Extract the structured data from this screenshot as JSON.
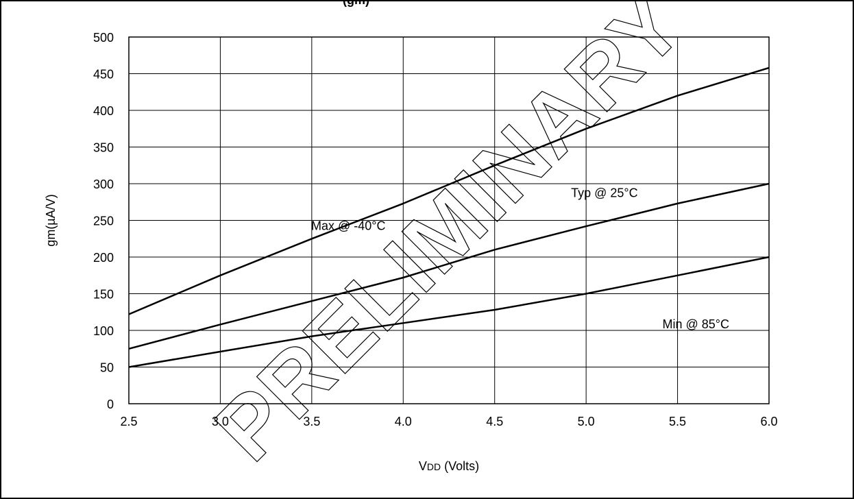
{
  "top_clipped_text": "(gm)",
  "watermark": "PRELIMINARY",
  "chart_data": {
    "type": "line",
    "title": "",
    "xlabel": "VDD (Volts)",
    "ylabel": "gm(µA/V)",
    "xlim": [
      2.5,
      6.0
    ],
    "ylim": [
      0,
      500
    ],
    "x_ticks": [
      "2.5",
      "3.0",
      "3.5",
      "4.0",
      "4.5",
      "5.0",
      "5.5",
      "6.0"
    ],
    "y_ticks": [
      "0",
      "50",
      "100",
      "150",
      "200",
      "250",
      "300",
      "350",
      "400",
      "450",
      "500"
    ],
    "grid": true,
    "series": [
      {
        "name": "Max @ -40°C",
        "x": [
          2.5,
          3.0,
          3.5,
          4.0,
          4.5,
          5.0,
          5.5,
          6.0
        ],
        "y": [
          122,
          175,
          225,
          273,
          325,
          375,
          420,
          458
        ]
      },
      {
        "name": "Typ @ 25°C",
        "x": [
          2.5,
          3.0,
          3.5,
          4.0,
          4.5,
          5.0,
          5.5,
          6.0
        ],
        "y": [
          75,
          108,
          140,
          172,
          210,
          242,
          273,
          300
        ]
      },
      {
        "name": "Min @ 85°C",
        "x": [
          2.5,
          3.0,
          3.5,
          4.0,
          4.5,
          5.0,
          5.5,
          6.0
        ],
        "y": [
          50,
          71,
          92,
          110,
          128,
          150,
          175,
          200
        ]
      }
    ]
  }
}
